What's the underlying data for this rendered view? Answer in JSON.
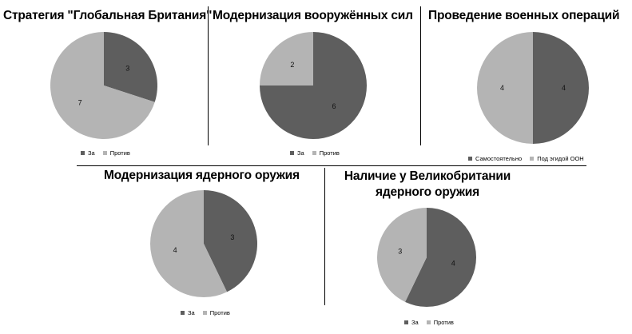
{
  "colors": {
    "dark": "#5e5e5e",
    "light": "#b4b4b4"
  },
  "chart_data": [
    {
      "type": "pie",
      "title": "Стратегия \"Глобальная Британия\"",
      "categories": [
        "За",
        "Против"
      ],
      "values": [
        3,
        7
      ],
      "legend": "bottom"
    },
    {
      "type": "pie",
      "title": "Модернизация вооружённых сил",
      "categories": [
        "За",
        "Против"
      ],
      "values": [
        6,
        2
      ],
      "legend": "bottom"
    },
    {
      "type": "pie",
      "title": "Проведение военных операций",
      "categories": [
        "Самостоятельно",
        "Под эгидой ООН"
      ],
      "values": [
        4,
        4
      ],
      "legend": "bottom"
    },
    {
      "type": "pie",
      "title": "Модернизация ядерного оружия",
      "categories": [
        "За",
        "Против"
      ],
      "values": [
        3,
        4
      ],
      "legend": "bottom"
    },
    {
      "type": "pie",
      "title_lines": [
        "Наличие у Великобритании",
        "ядерного оружия"
      ],
      "categories": [
        "За",
        "Против"
      ],
      "values": [
        4,
        3
      ],
      "legend": "bottom"
    }
  ]
}
